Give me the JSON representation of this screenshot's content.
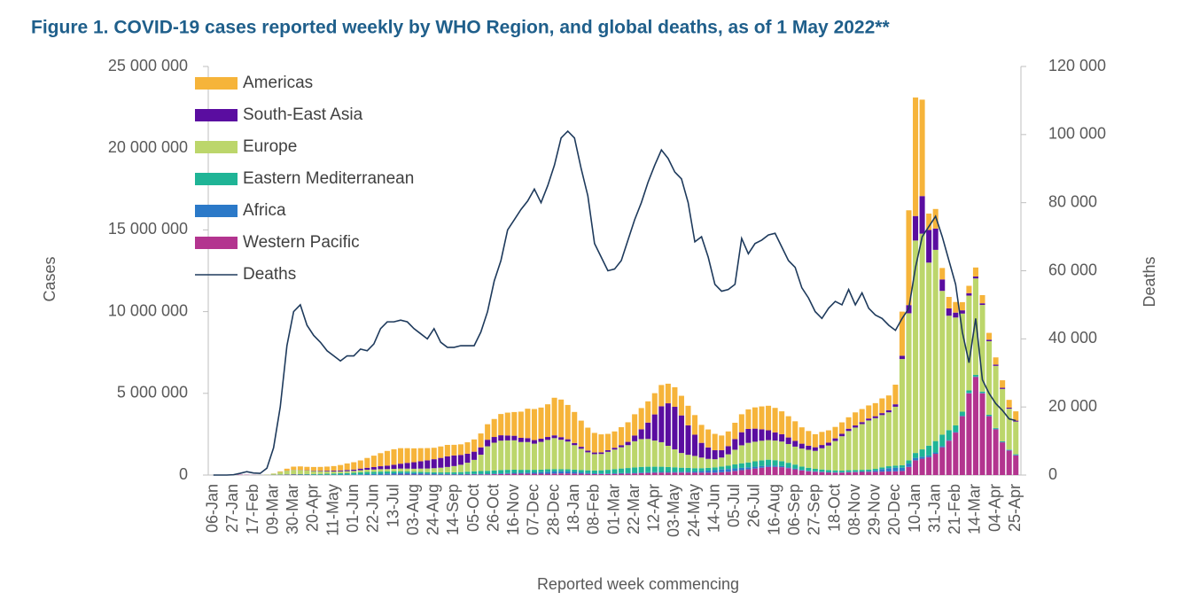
{
  "chart_data": {
    "type": "bar",
    "stacked": true,
    "title": "Figure 1. COVID-19 cases reported weekly by WHO Region, and global deaths, as of 1 May 2022**",
    "x_label": "Reported week commencing",
    "y_label": "Cases",
    "y2_label": "Deaths",
    "legend": "upper left",
    "grid": false,
    "categories": [
      "06-Jan",
      null,
      null,
      "27-Jan",
      null,
      null,
      "17-Feb",
      null,
      null,
      "09-Mar",
      null,
      null,
      "30-Mar",
      null,
      null,
      "20-Apr",
      null,
      null,
      "11-May",
      null,
      null,
      "01-Jun",
      null,
      null,
      "22-Jun",
      null,
      null,
      "13-Jul",
      null,
      null,
      "03-Aug",
      null,
      null,
      "24-Aug",
      null,
      null,
      "14-Sep",
      null,
      null,
      "05-Oct",
      null,
      null,
      "26-Oct",
      null,
      null,
      "16-Nov",
      null,
      null,
      "07-Dec",
      null,
      null,
      "28-Dec",
      null,
      null,
      "18-Jan",
      null,
      null,
      "08-Feb",
      null,
      null,
      "01-Mar",
      null,
      null,
      "22-Mar",
      null,
      null,
      "12-Apr",
      null,
      null,
      "03-May",
      null,
      null,
      "24-May",
      null,
      null,
      "14-Jun",
      null,
      null,
      "05-Jul",
      null,
      null,
      "26-Jul",
      null,
      null,
      "16-Aug",
      null,
      null,
      "06-Sep",
      null,
      null,
      "27-Sep",
      null,
      null,
      "18-Oct",
      null,
      null,
      "08-Nov",
      null,
      null,
      "29-Nov",
      null,
      null,
      "20-Dec",
      null,
      null,
      "10-Jan",
      null,
      null,
      "31-Jan",
      null,
      null,
      "21-Feb",
      null,
      null,
      "14-Mar",
      null,
      null,
      "04-Apr",
      null,
      null,
      "25-Apr"
    ],
    "ylim": [
      0,
      25000000
    ],
    "yticks": [
      0,
      {
        "value": 5000000,
        "label": "5 000 000"
      },
      {
        "value": 10000000,
        "label": "10 000 000"
      },
      {
        "value": 15000000,
        "label": "15 000 000"
      },
      {
        "value": 20000000,
        "label": "20 000 000"
      },
      {
        "value": 25000000,
        "label": "25 000 000"
      }
    ],
    "y2lim": [
      0,
      120000
    ],
    "y2ticks": [
      0,
      {
        "value": 20000,
        "label": "20 000"
      },
      {
        "value": 40000,
        "label": "40 000"
      },
      {
        "value": 60000,
        "label": "60 000"
      },
      {
        "value": 80000,
        "label": "80 000"
      },
      {
        "value": 100000,
        "label": "100 000"
      },
      {
        "value": 120000,
        "label": "120 000"
      }
    ],
    "series": [
      {
        "name": "Americas",
        "color": "#f6b43a",
        "values": [
          0,
          0,
          0,
          0,
          0,
          0,
          0,
          0,
          2000,
          10000,
          40000,
          120000,
          200000,
          220000,
          210000,
          220000,
          230000,
          250000,
          280000,
          330000,
          400000,
          450000,
          500000,
          600000,
          700000,
          800000,
          900000,
          950000,
          950000,
          900000,
          850000,
          800000,
          750000,
          700000,
          700000,
          700000,
          650000,
          650000,
          700000,
          750000,
          850000,
          950000,
          1100000,
          1300000,
          1400000,
          1450000,
          1600000,
          1800000,
          1900000,
          1900000,
          2000000,
          2300000,
          2300000,
          2100000,
          1900000,
          1600000,
          1400000,
          1200000,
          1100000,
          1000000,
          1000000,
          1100000,
          1200000,
          1300000,
          1300000,
          1300000,
          1300000,
          1300000,
          1200000,
          1200000,
          1200000,
          1200000,
          1200000,
          1100000,
          1100000,
          1000000,
          900000,
          900000,
          1000000,
          1100000,
          1200000,
          1300000,
          1400000,
          1500000,
          1500000,
          1400000,
          1300000,
          1200000,
          1000000,
          900000,
          800000,
          800000,
          750000,
          700000,
          700000,
          700000,
          800000,
          800000,
          800000,
          800000,
          900000,
          900000,
          1200000,
          2700000,
          5800000,
          7250000,
          5900000,
          1000000,
          1200000,
          700000,
          700000,
          650000,
          500000,
          450000,
          550000,
          500000,
          420000,
          440000,
          460000,
          470000,
          570000
        ]
      },
      {
        "name": "South-East Asia",
        "color": "#5a0da0",
        "values": [
          0,
          0,
          0,
          0,
          0,
          0,
          0,
          0,
          0,
          1000,
          2000,
          5000,
          8000,
          12000,
          15000,
          25000,
          30000,
          40000,
          50000,
          60000,
          70000,
          80000,
          100000,
          120000,
          150000,
          180000,
          210000,
          250000,
          300000,
          350000,
          400000,
          450000,
          500000,
          550000,
          600000,
          650000,
          650000,
          600000,
          550000,
          500000,
          450000,
          400000,
          350000,
          330000,
          300000,
          280000,
          260000,
          240000,
          220000,
          200000,
          180000,
          170000,
          160000,
          140000,
          130000,
          120000,
          110000,
          100000,
          100000,
          100000,
          110000,
          130000,
          200000,
          350000,
          600000,
          1000000,
          1600000,
          2200000,
          2600000,
          2600000,
          2300000,
          1800000,
          1300000,
          900000,
          700000,
          550000,
          450000,
          500000,
          650000,
          800000,
          850000,
          800000,
          700000,
          600000,
          500000,
          450000,
          400000,
          350000,
          300000,
          250000,
          220000,
          200000,
          180000,
          160000,
          150000,
          140000,
          130000,
          120000,
          120000,
          120000,
          120000,
          130000,
          150000,
          200000,
          500000,
          1500000,
          2300000,
          2000000,
          1300000,
          700000,
          450000,
          300000,
          200000,
          150000,
          120000,
          100000,
          90000,
          80000,
          70000,
          70000,
          60000
        ]
      },
      {
        "name": "Europe",
        "color": "#bcd66b",
        "values": [
          0,
          0,
          0,
          0,
          0,
          0,
          0,
          3000,
          15000,
          60000,
          150000,
          220000,
          250000,
          240000,
          220000,
          190000,
          170000,
          150000,
          130000,
          120000,
          120000,
          120000,
          130000,
          140000,
          140000,
          150000,
          150000,
          160000,
          170000,
          180000,
          180000,
          200000,
          220000,
          250000,
          290000,
          330000,
          380000,
          450000,
          550000,
          700000,
          1000000,
          1500000,
          1700000,
          1800000,
          1800000,
          1800000,
          1700000,
          1700000,
          1600000,
          1700000,
          1800000,
          1900000,
          1800000,
          1700000,
          1500000,
          1300000,
          1100000,
          1000000,
          1000000,
          1100000,
          1200000,
          1300000,
          1400000,
          1600000,
          1700000,
          1700000,
          1600000,
          1500000,
          1300000,
          1100000,
          900000,
          800000,
          750000,
          650000,
          550000,
          500000,
          550000,
          700000,
          900000,
          1100000,
          1200000,
          1200000,
          1200000,
          1200000,
          1200000,
          1200000,
          1150000,
          1100000,
          1100000,
          1100000,
          1100000,
          1300000,
          1500000,
          1800000,
          2100000,
          2400000,
          2600000,
          2800000,
          3000000,
          3100000,
          3200000,
          3300000,
          3600000,
          6500000,
          9000000,
          13000000,
          13200000,
          11200000,
          11700000,
          8800000,
          7000000,
          6600000,
          6000000,
          5800000,
          5900000,
          5300000,
          4500000,
          3800000,
          3200000,
          2500000,
          2000000
        ]
      },
      {
        "name": "Eastern Mediterranean",
        "color": "#1fb496",
        "values": [
          0,
          0,
          0,
          0,
          0,
          0,
          0,
          2000,
          5000,
          10000,
          15000,
          20000,
          25000,
          30000,
          35000,
          40000,
          50000,
          60000,
          70000,
          80000,
          90000,
          100000,
          120000,
          130000,
          130000,
          130000,
          120000,
          110000,
          100000,
          90000,
          90000,
          90000,
          90000,
          90000,
          90000,
          100000,
          110000,
          120000,
          140000,
          160000,
          170000,
          180000,
          190000,
          200000,
          200000,
          190000,
          180000,
          170000,
          160000,
          150000,
          150000,
          140000,
          130000,
          130000,
          140000,
          150000,
          160000,
          170000,
          190000,
          220000,
          250000,
          280000,
          300000,
          330000,
          340000,
          340000,
          330000,
          320000,
          300000,
          280000,
          250000,
          230000,
          200000,
          180000,
          170000,
          170000,
          180000,
          200000,
          240000,
          280000,
          300000,
          330000,
          350000,
          350000,
          330000,
          300000,
          270000,
          240000,
          200000,
          180000,
          150000,
          130000,
          120000,
          110000,
          100000,
          100000,
          100000,
          100000,
          100000,
          100000,
          110000,
          120000,
          130000,
          150000,
          200000,
          300000,
          450000,
          600000,
          700000,
          700000,
          600000,
          400000,
          250000,
          150000,
          100000,
          80000,
          60000,
          50000,
          40000,
          30000,
          30000
        ]
      },
      {
        "name": "Africa",
        "color": "#2b79c8",
        "values": [
          0,
          0,
          0,
          0,
          0,
          0,
          0,
          0,
          0,
          1000,
          3000,
          5000,
          6000,
          7000,
          8000,
          9000,
          10000,
          12000,
          15000,
          20000,
          25000,
          30000,
          40000,
          50000,
          60000,
          70000,
          80000,
          90000,
          100000,
          100000,
          90000,
          80000,
          70000,
          60000,
          50000,
          45000,
          40000,
          40000,
          40000,
          40000,
          40000,
          40000,
          40000,
          45000,
          50000,
          55000,
          60000,
          70000,
          80000,
          100000,
          120000,
          130000,
          130000,
          120000,
          100000,
          80000,
          60000,
          50000,
          40000,
          40000,
          40000,
          40000,
          40000,
          40000,
          40000,
          40000,
          40000,
          40000,
          40000,
          45000,
          50000,
          60000,
          70000,
          90000,
          120000,
          150000,
          170000,
          170000,
          160000,
          140000,
          120000,
          110000,
          100000,
          90000,
          80000,
          70000,
          60000,
          50000,
          40000,
          35000,
          30000,
          30000,
          25000,
          25000,
          25000,
          25000,
          25000,
          30000,
          40000,
          80000,
          150000,
          200000,
          220000,
          200000,
          200000,
          150000,
          120000,
          100000,
          80000,
          70000,
          50000,
          40000,
          30000,
          30000,
          30000,
          30000,
          30000,
          30000,
          30000,
          30000,
          40000
        ]
      },
      {
        "name": "Western Pacific",
        "color": "#b3348f",
        "values": [
          0,
          2000,
          10000,
          17000,
          20000,
          15000,
          8000,
          5000,
          7000,
          10000,
          15000,
          20000,
          25000,
          20000,
          15000,
          10000,
          8000,
          6000,
          5000,
          5000,
          5000,
          5000,
          5000,
          6000,
          7000,
          10000,
          15000,
          20000,
          25000,
          25000,
          25000,
          25000,
          20000,
          20000,
          20000,
          20000,
          20000,
          20000,
          25000,
          30000,
          35000,
          40000,
          50000,
          60000,
          70000,
          80000,
          80000,
          80000,
          80000,
          80000,
          80000,
          90000,
          100000,
          100000,
          90000,
          80000,
          70000,
          60000,
          60000,
          60000,
          70000,
          80000,
          90000,
          100000,
          120000,
          130000,
          140000,
          150000,
          150000,
          150000,
          150000,
          150000,
          150000,
          150000,
          150000,
          150000,
          170000,
          200000,
          250000,
          300000,
          350000,
          400000,
          450000,
          500000,
          500000,
          480000,
          420000,
          350000,
          280000,
          230000,
          200000,
          180000,
          160000,
          150000,
          150000,
          170000,
          180000,
          190000,
          200000,
          200000,
          210000,
          220000,
          230000,
          250000,
          500000,
          900000,
          1000000,
          1100000,
          1300000,
          1700000,
          2100000,
          2600000,
          3600000,
          5000000,
          6000000,
          5000000,
          3600000,
          2800000,
          2000000,
          1500000,
          1200000
        ]
      },
      {
        "name": "Deaths",
        "color": "#1e3a5c",
        "axis": "y2",
        "type": "line",
        "values": [
          0,
          0,
          0,
          100,
          500,
          1000,
          600,
          500,
          2000,
          8000,
          20000,
          38000,
          48000,
          50000,
          44000,
          41000,
          39000,
          36500,
          35000,
          33500,
          35000,
          35000,
          37000,
          36500,
          38500,
          43000,
          45000,
          45000,
          45500,
          45000,
          43000,
          41500,
          40000,
          43000,
          39000,
          37500,
          37500,
          38000,
          38000,
          38000,
          42000,
          48000,
          57000,
          63000,
          72000,
          75000,
          78000,
          80500,
          84000,
          80000,
          85000,
          91000,
          99000,
          101000,
          99000,
          90000,
          82000,
          68000,
          64000,
          60000,
          60500,
          63000,
          69000,
          75000,
          80000,
          86000,
          91000,
          95500,
          93000,
          89000,
          87000,
          80000,
          68500,
          70000,
          64000,
          56000,
          54000,
          54500,
          56000,
          69500,
          65000,
          68000,
          69000,
          70500,
          71000,
          67000,
          63000,
          61000,
          55000,
          52000,
          48000,
          46000,
          49000,
          51000,
          50000,
          54500,
          50000,
          53500,
          49000,
          47000,
          46000,
          44000,
          42500,
          46000,
          49000,
          61000,
          70000,
          73000,
          76000,
          70000,
          63000,
          56000,
          42000,
          33000,
          46000,
          28000,
          24000,
          21000,
          19000,
          16500,
          16000
        ]
      }
    ]
  }
}
